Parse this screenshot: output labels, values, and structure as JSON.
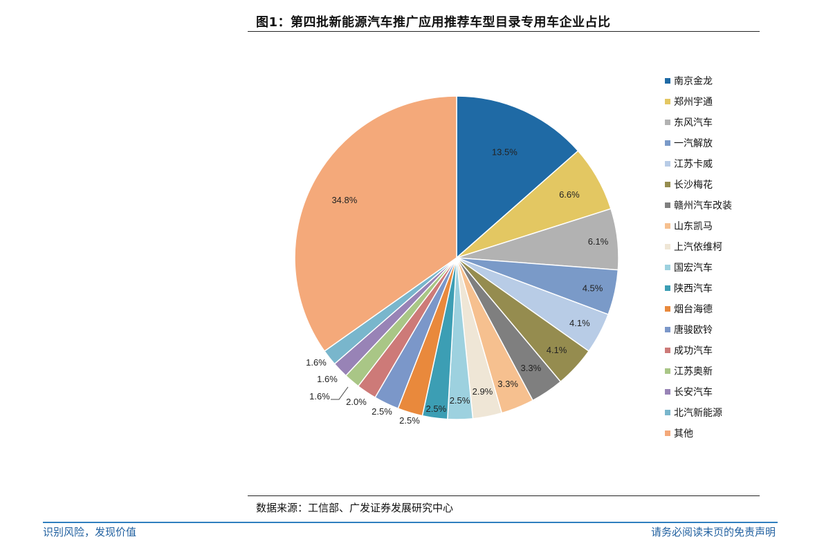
{
  "title": "图1：第四批新能源汽车推广应用推荐车型目录专用车企业占比",
  "source": "数据来源：工信部、广发证券发展研究中心",
  "footer": {
    "left": "识别风险，发现价值",
    "right": "请务必阅读末页的免责声明"
  },
  "chart_data": {
    "type": "pie",
    "title": "第四批新能源汽车推广应用推荐车型目录专用车企业占比",
    "unit": "%",
    "legend_position": "right",
    "slices": [
      {
        "name": "南京金龙",
        "value": 13.5,
        "label": "13.5%",
        "color": "#1f6aa5"
      },
      {
        "name": "郑州宇通",
        "value": 6.6,
        "label": "6.6%",
        "color": "#e3c762"
      },
      {
        "name": "东风汽车",
        "value": 6.1,
        "label": "6.1%",
        "color": "#b2b2b2"
      },
      {
        "name": "一汽解放",
        "value": 4.5,
        "label": "4.5%",
        "color": "#7a9ac8"
      },
      {
        "name": "江苏卡威",
        "value": 4.1,
        "label": "4.1%",
        "color": "#b8cce6"
      },
      {
        "name": "长沙梅花",
        "value": 4.1,
        "label": "4.1%",
        "color": "#958c4f"
      },
      {
        "name": "赣州汽车改装",
        "value": 3.3,
        "label": "3.3%",
        "color": "#7f7f7f"
      },
      {
        "name": "山东凯马",
        "value": 3.3,
        "label": "3.3%",
        "color": "#f6c08f"
      },
      {
        "name": "上汽依维柯",
        "value": 2.9,
        "label": "2.9%",
        "color": "#efe6d6"
      },
      {
        "name": "国宏汽车",
        "value": 2.5,
        "label": "2.5%",
        "color": "#9dd1df"
      },
      {
        "name": "陕西汽车",
        "value": 2.5,
        "label": "2.5%",
        "color": "#3c9eb4"
      },
      {
        "name": "烟台海德",
        "value": 2.5,
        "label": "2.5%",
        "color": "#e9893c"
      },
      {
        "name": "唐骏欧铃",
        "value": 2.5,
        "label": "2.5%",
        "color": "#7b97c9"
      },
      {
        "name": "成功汽车",
        "value": 2.0,
        "label": "2.0%",
        "color": "#cd7a78"
      },
      {
        "name": "江苏奥新",
        "value": 1.6,
        "label": "1.6%",
        "color": "#a9c686"
      },
      {
        "name": "长安汽车",
        "value": 1.6,
        "label": "1.6%",
        "color": "#9883b6"
      },
      {
        "name": "北汽新能源",
        "value": 1.6,
        "label": "1.6%",
        "color": "#79b6cc"
      },
      {
        "name": "其他",
        "value": 34.8,
        "label": "34.8%",
        "color": "#f4a97a"
      }
    ]
  }
}
